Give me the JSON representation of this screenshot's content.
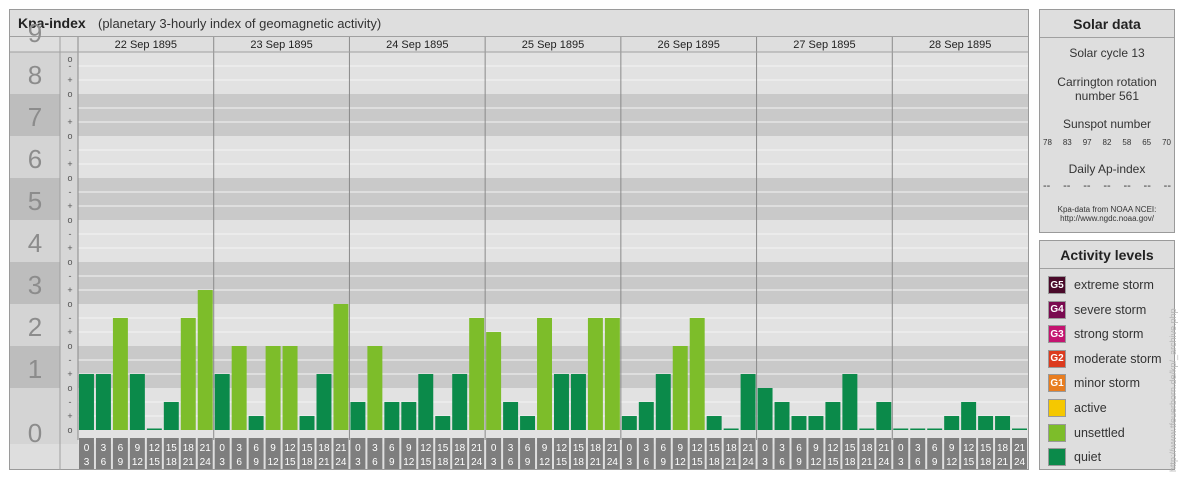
{
  "title": "Kpa-index",
  "subtitle": "(planetary 3-hourly index of geomagnetic activity)",
  "chart_data": {
    "type": "bar",
    "y_range": [
      0,
      9
    ],
    "y_major_labels": [
      "0",
      "1",
      "2",
      "3",
      "4",
      "5",
      "6",
      "7",
      "8",
      "9"
    ],
    "y_minor_labels": [
      "-",
      "o",
      "+"
    ],
    "days": [
      "22 Sep 1895",
      "23 Sep 1895",
      "24 Sep 1895",
      "25 Sep 1895",
      "26 Sep 1895",
      "27 Sep 1895",
      "28 Sep 1895"
    ],
    "hour_ticks": [
      [
        "0",
        "3"
      ],
      [
        "3",
        "6"
      ],
      [
        "6",
        "9"
      ],
      [
        "9",
        "12"
      ],
      [
        "12",
        "15"
      ],
      [
        "15",
        "18"
      ],
      [
        "18",
        "21"
      ],
      [
        "21",
        "24"
      ]
    ],
    "values": [
      1.333,
      1.333,
      2.667,
      1.333,
      0,
      0.667,
      2.667,
      3.333,
      1.333,
      2.0,
      0.333,
      2.0,
      2.0,
      0.333,
      1.333,
      3.0,
      0.667,
      2.0,
      0.667,
      0.667,
      1.333,
      0.333,
      1.333,
      2.667,
      2.333,
      0.667,
      0.333,
      2.667,
      1.333,
      1.333,
      2.667,
      2.667,
      0.333,
      0.667,
      1.333,
      2.0,
      2.667,
      0.333,
      0,
      1.333,
      1.0,
      0.667,
      0.333,
      0.333,
      0.667,
      1.333,
      0,
      0.667,
      0,
      0,
      0,
      0.333,
      0.667,
      0.333,
      0.333,
      0
    ],
    "colors": {
      "quiet": "#0b8a4a",
      "unsettled": "#7dbd2a",
      "active": "#f5c800"
    }
  },
  "solar": {
    "title": "Solar data",
    "cycle": "Solar cycle 13",
    "carrington_line1": "Carrington rotation",
    "carrington_line2": "number 561",
    "sunspot_label": "Sunspot number",
    "sunspot_values": [
      "78",
      "83",
      "97",
      "82",
      "58",
      "65",
      "70"
    ],
    "ap_label": "Daily Ap-index",
    "ap_values": [
      "--",
      "--",
      "--",
      "--",
      "--",
      "--",
      "--"
    ],
    "source_line1": "Kpa-data from NOAA NCEI:",
    "source_line2": "http://www.ngdc.noaa.gov/"
  },
  "activity": {
    "title": "Activity levels",
    "items": [
      {
        "code": "G5",
        "label": "extreme storm",
        "color": "#4a0a2a"
      },
      {
        "code": "G4",
        "label": "severe storm",
        "color": "#7a0a50"
      },
      {
        "code": "G3",
        "label": "strong storm",
        "color": "#c41470"
      },
      {
        "code": "G2",
        "label": "moderate storm",
        "color": "#dc3a1e"
      },
      {
        "code": "G1",
        "label": "minor storm",
        "color": "#e87d20"
      },
      {
        "code": "",
        "label": "active",
        "color": "#f5c800"
      },
      {
        "code": "",
        "label": "unsettled",
        "color": "#7dbd2a"
      },
      {
        "code": "",
        "label": "quiet",
        "color": "#0b8a4a"
      }
    ]
  },
  "watermark": "http://www.tfeuerborn.de/kp/_archive.php"
}
